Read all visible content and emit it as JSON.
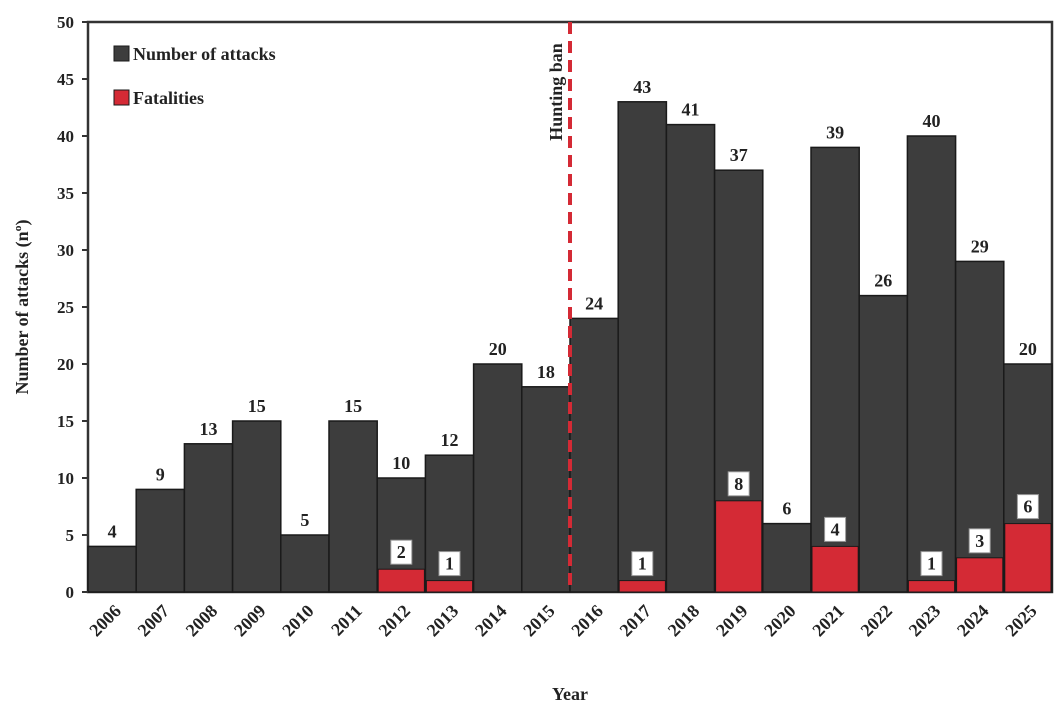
{
  "chart_data": {
    "type": "bar",
    "categories": [
      "2006",
      "2007",
      "2008",
      "2009",
      "2010",
      "2011",
      "2012",
      "2013",
      "2014",
      "2015",
      "2016",
      "2017",
      "2018",
      "2019",
      "2020",
      "2021",
      "2022",
      "2023",
      "2024",
      "2025"
    ],
    "series": [
      {
        "name": "Number of attacks",
        "color": "#3d3d3d",
        "values": [
          4,
          9,
          13,
          15,
          5,
          15,
          10,
          12,
          20,
          18,
          24,
          43,
          41,
          37,
          6,
          39,
          26,
          40,
          29,
          20
        ]
      },
      {
        "name": "Fatalities",
        "color": "#d42a35",
        "values": [
          null,
          null,
          null,
          null,
          null,
          null,
          2,
          1,
          null,
          null,
          null,
          1,
          null,
          8,
          null,
          4,
          null,
          1,
          3,
          6
        ]
      }
    ],
    "xlabel": "Year",
    "ylabel": "Number of attacks (nº)",
    "ylim": [
      0,
      50
    ],
    "yticks": [
      0,
      5,
      10,
      15,
      20,
      25,
      30,
      35,
      40,
      45,
      50
    ],
    "grid": false,
    "legend_position": "top-left",
    "annotations": [
      {
        "type": "vertical-dashed-line",
        "between": [
          "2015",
          "2016"
        ],
        "label": "Hunting ban",
        "color": "#d42a35"
      }
    ]
  }
}
